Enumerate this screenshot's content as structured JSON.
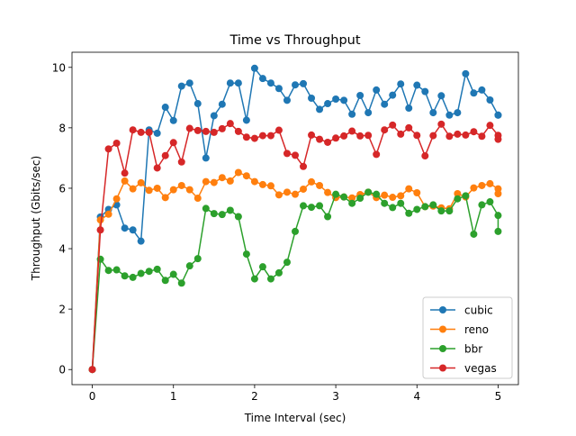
{
  "chart_data": {
    "type": "line",
    "title": "Time vs Throughput",
    "xlabel": "Time Interval (sec)",
    "ylabel": "Throughput (Gbits/sec)",
    "xlim": [
      -0.25,
      5.25
    ],
    "ylim": [
      -0.5,
      10.5
    ],
    "xticks": [
      0,
      1,
      2,
      3,
      4,
      5
    ],
    "xtick_labels": [
      "0",
      "1",
      "2",
      "3",
      "4",
      "5"
    ],
    "yticks": [
      0,
      2,
      4,
      6,
      8,
      10
    ],
    "ytick_labels": [
      "0",
      "2",
      "4",
      "6",
      "8",
      "10"
    ],
    "grid": false,
    "legend_position": "lower-right",
    "x": [
      0,
      0.1,
      0.2,
      0.3,
      0.4,
      0.5,
      0.6,
      0.7,
      0.8,
      0.9,
      1.0,
      1.1,
      1.2,
      1.3,
      1.4,
      1.5,
      1.6,
      1.7,
      1.8,
      1.9,
      2.0,
      2.1,
      2.2,
      2.3,
      2.4,
      2.5,
      2.6,
      2.7,
      2.8,
      2.9,
      3.0,
      3.1,
      3.2,
      3.3,
      3.4,
      3.5,
      3.6,
      3.7,
      3.8,
      3.9,
      4.0,
      4.1,
      4.2,
      4.3,
      4.4,
      4.5,
      4.6,
      4.7,
      4.8,
      4.9,
      5.0,
      5.0
    ],
    "series": [
      {
        "name": "cubic",
        "color": "#1f77b4",
        "values": [
          0,
          5.05,
          5.3,
          5.45,
          4.68,
          4.62,
          4.25,
          7.93,
          7.82,
          8.68,
          8.24,
          9.38,
          9.48,
          8.8,
          7.0,
          8.4,
          8.78,
          9.48,
          9.48,
          8.25,
          9.97,
          9.63,
          9.48,
          9.3,
          8.91,
          9.42,
          9.46,
          8.98,
          8.61,
          8.8,
          8.95,
          8.91,
          8.45,
          9.07,
          8.5,
          9.25,
          8.78,
          9.08,
          9.45,
          8.65,
          9.41,
          9.2,
          8.5,
          9.06,
          8.42,
          8.5,
          9.79,
          9.15,
          9.25,
          8.92,
          8.42,
          8.42
        ]
      },
      {
        "name": "reno",
        "color": "#ff7f0e",
        "values": [
          0,
          4.95,
          5.14,
          5.65,
          6.24,
          5.98,
          6.18,
          5.93,
          6.0,
          5.69,
          5.95,
          6.09,
          5.95,
          5.67,
          6.22,
          6.19,
          6.35,
          6.24,
          6.52,
          6.41,
          6.22,
          6.12,
          6.08,
          5.78,
          5.87,
          5.8,
          5.97,
          6.21,
          6.09,
          5.86,
          5.69,
          5.71,
          5.68,
          5.79,
          5.87,
          5.69,
          5.77,
          5.7,
          5.75,
          5.98,
          5.85,
          5.39,
          5.41,
          5.35,
          5.32,
          5.82,
          5.71,
          6.01,
          6.09,
          6.15,
          5.98,
          5.82
        ]
      },
      {
        "name": "bbr",
        "color": "#2ca02c",
        "values": [
          0,
          3.65,
          3.28,
          3.3,
          3.1,
          3.05,
          3.18,
          3.25,
          3.32,
          2.95,
          3.15,
          2.86,
          3.43,
          3.67,
          5.33,
          5.16,
          5.13,
          5.27,
          5.06,
          3.82,
          3.0,
          3.4,
          3.0,
          3.2,
          3.55,
          4.57,
          5.42,
          5.37,
          5.42,
          5.06,
          5.8,
          5.71,
          5.5,
          5.67,
          5.87,
          5.8,
          5.5,
          5.36,
          5.5,
          5.17,
          5.3,
          5.39,
          5.45,
          5.25,
          5.25,
          5.65,
          5.75,
          4.48,
          5.45,
          5.55,
          5.1,
          4.57
        ]
      },
      {
        "name": "vegas",
        "color": "#d62728",
        "values": [
          0,
          4.62,
          7.3,
          7.49,
          6.5,
          7.93,
          7.85,
          7.85,
          6.67,
          7.08,
          7.51,
          6.87,
          7.98,
          7.91,
          7.88,
          7.85,
          7.97,
          8.14,
          7.88,
          7.69,
          7.65,
          7.74,
          7.74,
          7.92,
          7.15,
          7.09,
          6.72,
          7.76,
          7.62,
          7.52,
          7.66,
          7.73,
          7.89,
          7.73,
          7.75,
          7.12,
          7.93,
          8.09,
          7.79,
          8.0,
          7.75,
          7.07,
          7.74,
          8.12,
          7.72,
          7.79,
          7.76,
          7.87,
          7.72,
          8.08,
          7.75,
          7.62
        ]
      }
    ]
  }
}
